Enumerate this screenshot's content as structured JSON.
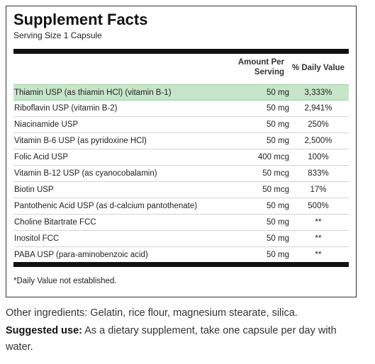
{
  "panel": {
    "title": "Supplement Facts",
    "serving_size": "Serving Size 1 Capsule",
    "header_amount_line1": "Amount Per",
    "header_amount_line2": "Serving",
    "header_daily_value": "% Daily Value",
    "rows": [
      {
        "name": "Thiamin USP (as thiamin HCl) (vitamin B-1)",
        "amount": "50 mg",
        "daily_value": "3,333%",
        "highlighted": true
      },
      {
        "name": "Riboflavin USP (vitamin B-2)",
        "amount": "50 mg",
        "daily_value": "2,941%"
      },
      {
        "name": "Niacinamide USP",
        "amount": "50 mg",
        "daily_value": "250%"
      },
      {
        "name": "Vitamin B-6 USP (as pyridoxine HCl)",
        "amount": "50 mg",
        "daily_value": "2,500%"
      },
      {
        "name": "Folic Acid USP",
        "amount": "400 mcg",
        "daily_value": "100%"
      },
      {
        "name": "Vitamin B-12 USP (as cyanocobalamin)",
        "amount": "50 mcg",
        "daily_value": "833%"
      },
      {
        "name": "Biotin USP",
        "amount": "50 mcg",
        "daily_value": "17%"
      },
      {
        "name": "Pantothenic Acid USP (as d-calcium pantothenate)",
        "amount": "50 mg",
        "daily_value": "500%"
      },
      {
        "name": "Choline Bitartrate FCC",
        "amount": "50 mg",
        "daily_value": "**"
      },
      {
        "name": "Inositol FCC",
        "amount": "50 mg",
        "daily_value": "**"
      },
      {
        "name": "PABA USP (para-aminobenzoic acid)",
        "amount": "50 mg",
        "daily_value": "**"
      }
    ],
    "footnote": "*Daily Value not established."
  },
  "other_ingredients": "Other ingredients: Gelatin, rice flour, magnesium stearate, silica.",
  "suggested_use": {
    "label": "Suggested use:",
    "text": " As a dietary supplement, take one capsule per day with water."
  },
  "colors": {
    "highlight_row": "#c7e6c9",
    "bar": "#111111"
  }
}
